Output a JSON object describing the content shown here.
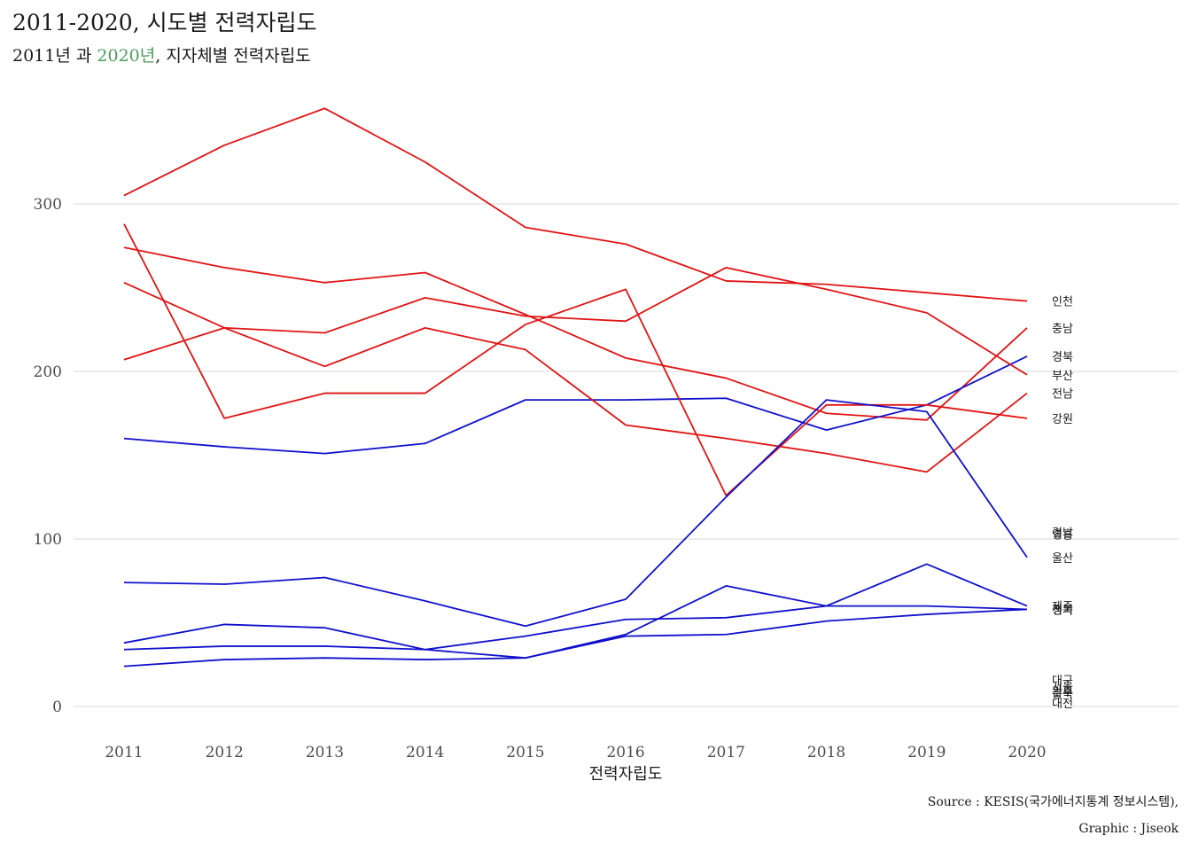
{
  "title": "2011-2020, 시도별 전력자립도",
  "subtitle": {
    "year_start": "2011년",
    "connector": "과",
    "year_end": "2020년",
    "rest": ", 지자체별 전력자립도"
  },
  "caption": {
    "source": "Source : KESIS(국가에너지통계 정보시스템),",
    "graphic": "Graphic : Jiseok"
  },
  "colors": {
    "up": "#1010cc",
    "down": "#e01414",
    "grid": "#e6e6e6",
    "subtitle_highlight": "#4c9a5c"
  },
  "chart_data": {
    "type": "line",
    "title": "2011-2020, 시도별 전력자립도",
    "xlabel": "전력자립도",
    "ylabel": "",
    "x": [
      2011,
      2012,
      2013,
      2014,
      2015,
      2016,
      2017,
      2018,
      2019,
      2020
    ],
    "yticks": [
      0,
      100,
      200,
      300
    ],
    "ylim": [
      -12,
      357
    ],
    "grid": true,
    "series": [
      {
        "name": "인천",
        "color": "down",
        "values": [
          305,
          335,
          357,
          325,
          286,
          276,
          254,
          252,
          247,
          242
        ]
      },
      {
        "name": "충남",
        "color": "down",
        "values": [
          274,
          262,
          253,
          259,
          234,
          208,
          196,
          175,
          171,
          226
        ]
      },
      {
        "name": "경북",
        "color": "up",
        "values": [
          160,
          155,
          151,
          157,
          183,
          183,
          184,
          165,
          180,
          209
        ]
      },
      {
        "name": "부산",
        "color": "down",
        "values": [
          207,
          226,
          223,
          244,
          233,
          230,
          262,
          249,
          235,
          198
        ]
      },
      {
        "name": "전남",
        "color": "down",
        "values": [
          253,
          226,
          203,
          226,
          213,
          168,
          160,
          151,
          140,
          187
        ]
      },
      {
        "name": "강원",
        "color": "down",
        "values": [
          288,
          172,
          187,
          187,
          228,
          249,
          126,
          180,
          180,
          172
        ]
      },
      {
        "name": "경남",
        "color": "down",
        "values": [
          null,
          null,
          null,
          null,
          null,
          null,
          null,
          null,
          null,
          104
        ]
      },
      {
        "name": "영흥",
        "color": "down",
        "values": [
          null,
          null,
          null,
          null,
          null,
          null,
          null,
          null,
          null,
          103
        ]
      },
      {
        "name": "울산",
        "color": "up",
        "values": [
          74,
          73,
          77,
          63,
          48,
          64,
          125,
          183,
          176,
          89
        ]
      },
      {
        "name": "제주",
        "color": "up",
        "values": [
          38,
          49,
          47,
          34,
          29,
          43,
          72,
          60,
          85,
          60
        ]
      },
      {
        "name": "전북",
        "color": "up",
        "values": [
          34,
          36,
          36,
          34,
          42,
          52,
          53,
          60,
          60,
          58
        ]
      },
      {
        "name": "경기",
        "color": "up",
        "values": [
          24,
          28,
          29,
          28,
          29,
          42,
          43,
          51,
          55,
          58
        ]
      },
      {
        "name": "대구",
        "color": "down",
        "values": [
          null,
          null,
          null,
          null,
          null,
          null,
          null,
          null,
          null,
          16
        ]
      },
      {
        "name": "서울",
        "color": "down",
        "values": [
          null,
          null,
          null,
          null,
          null,
          null,
          null,
          null,
          null,
          12
        ]
      },
      {
        "name": "광주",
        "color": "down",
        "values": [
          null,
          null,
          null,
          null,
          null,
          null,
          null,
          null,
          null,
          9
        ]
      },
      {
        "name": "충북",
        "color": "down",
        "values": [
          null,
          null,
          null,
          null,
          null,
          null,
          null,
          null,
          null,
          8
        ]
      },
      {
        "name": "대전",
        "color": "down",
        "values": [
          null,
          null,
          null,
          null,
          null,
          null,
          null,
          null,
          null,
          2
        ]
      }
    ],
    "end_labels": [
      "인천",
      "충남",
      "경북",
      "부산",
      "전남",
      "강원",
      "경남",
      "영흥",
      "울산",
      "제주",
      "전북",
      "경기",
      "대구",
      "서울",
      "광주",
      "충북",
      "대전"
    ]
  }
}
